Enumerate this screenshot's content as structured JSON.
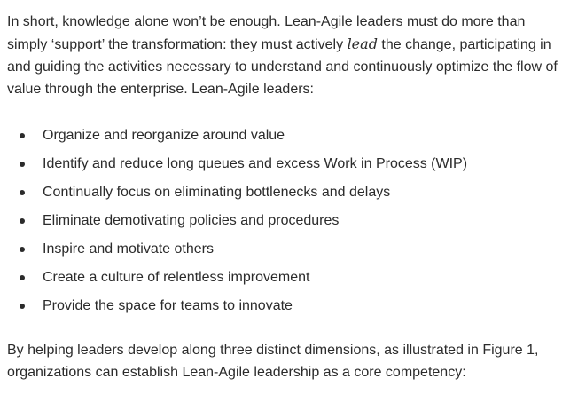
{
  "intro": {
    "before_emphasis": "In short, knowledge alone won’t be enough. Lean-Agile leaders must do more than simply ‘support’ the transformation: they must actively ",
    "emphasis": "lead",
    "after_emphasis": " the change, participating in and guiding the activities necessary to understand and continuously optimize the flow of value through the enterprise. Lean-Agile leaders:"
  },
  "bullets": [
    "Organize and reorganize around value",
    "Identify and reduce long queues and excess Work in Process (WIP)",
    "Continually focus on eliminating bottlenecks and delays",
    "Eliminate demotivating policies and procedures",
    "Inspire and motivate others",
    "Create a culture of relentless improvement",
    "Provide the space for teams to innovate"
  ],
  "closing": "By helping leaders develop along three distinct dimensions, as illustrated in Figure 1, organizations can establish Lean-Agile leadership as a core competency:"
}
